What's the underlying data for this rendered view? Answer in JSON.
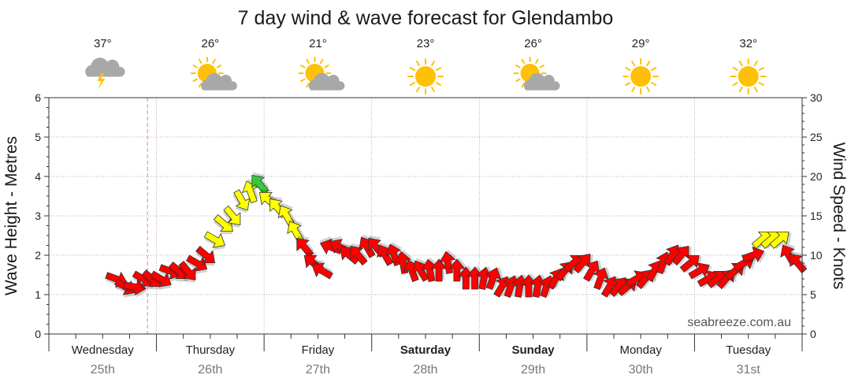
{
  "chart_data": {
    "type": "line",
    "title": "7 day wind & wave forecast for Glendambo",
    "left_axis_label": "Wave Height - Metres",
    "right_axis_label": "Wind Speed - Knots",
    "left_ylim": [
      0,
      6
    ],
    "left_ticks": [
      "0",
      "1",
      "2",
      "3",
      "4",
      "5",
      "6"
    ],
    "right_ylim": [
      0,
      30
    ],
    "right_ticks": [
      "0",
      "5",
      "10",
      "15",
      "20",
      "25",
      "30"
    ],
    "grid": true,
    "now_marker_hours": 22,
    "days": [
      {
        "name": "Wednesday",
        "date": "25th",
        "bold": false,
        "temp": "37°",
        "icon": "storm-icon"
      },
      {
        "name": "Thursday",
        "date": "26th",
        "bold": false,
        "temp": "26°",
        "icon": "partly-cloudy-icon"
      },
      {
        "name": "Friday",
        "date": "27th",
        "bold": false,
        "temp": "21°",
        "icon": "partly-cloudy-icon"
      },
      {
        "name": "Saturday",
        "date": "28th",
        "bold": true,
        "temp": "23°",
        "icon": "sun-icon"
      },
      {
        "name": "Sunday",
        "date": "29th",
        "bold": true,
        "temp": "26°",
        "icon": "partly-cloudy-icon"
      },
      {
        "name": "Monday",
        "date": "30th",
        "bold": false,
        "temp": "29°",
        "icon": "sun-icon"
      },
      {
        "name": "Tuesday",
        "date": "31st",
        "bold": false,
        "temp": "32°",
        "icon": "sun-icon"
      }
    ],
    "series": [
      {
        "name": "Wind Speed - Knots",
        "x_unit": "hours from start of Wednesday 25th",
        "x": [
          15,
          17,
          19,
          21,
          23,
          25,
          27,
          29,
          31,
          33,
          35,
          37,
          39,
          41,
          43,
          45,
          47,
          49,
          51,
          53,
          55,
          57,
          59,
          61,
          63,
          65,
          67,
          69,
          71,
          73,
          75,
          77,
          79,
          81,
          83,
          85,
          87,
          89,
          91,
          93,
          95,
          97,
          99,
          101,
          103,
          105,
          107,
          109,
          111,
          113,
          115,
          117,
          119,
          121,
          123,
          125,
          127,
          129,
          131,
          133,
          135,
          137,
          139,
          141,
          143,
          145,
          147,
          149,
          151,
          153,
          155,
          157,
          159,
          161,
          163,
          165,
          167
        ],
        "wind_knots": [
          7,
          6,
          6,
          7,
          7,
          7,
          8,
          8,
          8,
          9,
          10,
          12,
          14,
          15,
          17,
          18,
          19,
          17,
          16,
          15,
          13,
          11,
          9,
          8,
          11,
          11,
          10,
          10,
          11,
          11,
          10,
          10,
          9,
          8,
          8,
          8,
          8,
          9,
          8,
          7,
          7,
          7,
          7,
          6,
          6,
          6,
          6,
          6,
          6,
          7,
          8,
          9,
          9,
          8,
          7,
          6,
          6,
          6,
          7,
          7,
          8,
          9,
          10,
          10,
          9,
          8,
          7,
          7,
          7,
          8,
          9,
          10,
          12,
          12,
          12,
          10,
          9
        ],
        "direction_deg": [
          290,
          300,
          280,
          300,
          310,
          300,
          290,
          310,
          320,
          300,
          310,
          300,
          310,
          320,
          330,
          160,
          140,
          130,
          140,
          150,
          150,
          140,
          130,
          120,
          110,
          120,
          130,
          140,
          150,
          140,
          150,
          160,
          170,
          160,
          150,
          170,
          180,
          170,
          180,
          180,
          180,
          190,
          200,
          210,
          200,
          190,
          180,
          190,
          200,
          210,
          220,
          230,
          220,
          210,
          200,
          210,
          220,
          230,
          240,
          220,
          210,
          200,
          210,
          220,
          230,
          240,
          240,
          230,
          220,
          230,
          240,
          250,
          230,
          230,
          230,
          150,
          140
        ]
      }
    ]
  },
  "brand": "seabreeze.com.au",
  "colors": {
    "red": "#ff0000",
    "yellow": "#ffff00",
    "green": "#33cc33",
    "sun": "#ffc107",
    "cloud": "#a8a8a8",
    "grid": "#999999",
    "now_line": "#f08080"
  }
}
